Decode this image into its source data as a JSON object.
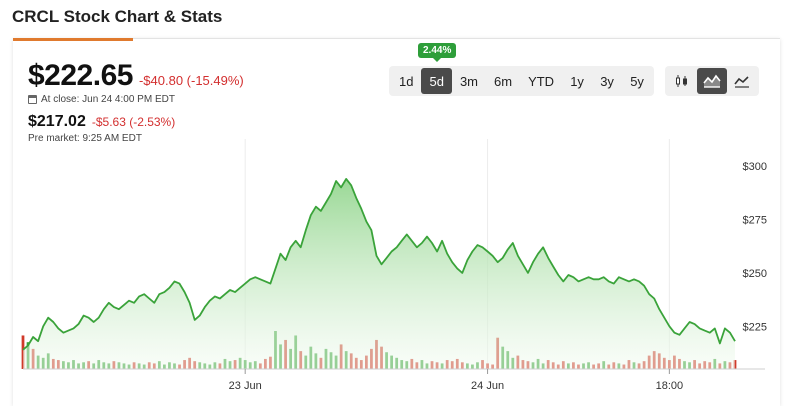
{
  "page": {
    "title": "CRCL Stock Chart & Stats"
  },
  "quote": {
    "price": "$222.65",
    "change": "-$40.80 (-15.49%)",
    "close_label": "At close: Jun 24 4:00 PM EDT",
    "pre_price": "$217.02",
    "pre_change": "-$5.63 (-2.53%)",
    "pre_label": "Pre market: 9:25 AM EDT"
  },
  "ranges": {
    "items": [
      "1d",
      "5d",
      "3m",
      "6m",
      "YTD",
      "1y",
      "3y",
      "5y"
    ],
    "selected": "5d",
    "badge": "2.44%"
  },
  "chart_types": {
    "items": [
      {
        "name": "candlestick-icon",
        "active": false
      },
      {
        "name": "mountain-icon",
        "active": true
      },
      {
        "name": "line-chart-icon",
        "active": false
      }
    ]
  },
  "colors": {
    "accent": "#e07a2e",
    "line": "#3aa33a",
    "area_top": "#8fd48a",
    "area_bottom": "#f3fbf2",
    "up": "#3aa33a",
    "down": "#d03a2a",
    "negative_text": "#d32f2f",
    "badge": "#2e9e3a"
  },
  "chart_data": {
    "type": "area",
    "title": "",
    "xlabel": "",
    "ylabel": "",
    "ylim": [
      205,
      308
    ],
    "y_ticks": [
      300,
      275,
      250,
      225
    ],
    "y_tick_labels": [
      "$300",
      "$275",
      "$250",
      "$225"
    ],
    "x_tick_labels": [
      {
        "label": "23 Jun",
        "index": 44
      },
      {
        "label": "24 Jun",
        "index": 92
      },
      {
        "label": "18:00",
        "index": 128
      }
    ],
    "price": [
      214,
      216,
      220,
      218,
      225,
      229,
      227,
      224,
      222,
      223,
      224,
      226,
      230,
      229,
      227,
      229,
      233,
      236,
      234,
      233,
      235,
      237,
      236,
      239,
      240,
      238,
      236,
      240,
      241,
      243,
      246,
      245,
      241,
      236,
      228,
      230,
      234,
      237,
      239,
      238,
      240,
      242,
      241,
      243,
      245,
      247,
      248,
      247,
      246,
      245,
      252,
      259,
      256,
      262,
      265,
      262,
      270,
      277,
      281,
      279,
      283,
      287,
      293,
      290,
      294,
      291,
      285,
      280,
      274,
      270,
      258,
      254,
      257,
      260,
      262,
      265,
      268,
      265,
      262,
      264,
      267,
      264,
      260,
      265,
      259,
      255,
      252,
      250,
      256,
      260,
      263,
      262,
      260,
      258,
      255,
      257,
      261,
      264,
      258,
      254,
      250,
      255,
      259,
      262,
      257,
      253,
      249,
      246,
      249,
      248,
      246,
      247,
      248,
      247,
      247,
      248,
      246,
      245,
      248,
      247,
      246,
      247,
      246,
      244,
      240,
      238,
      233,
      229,
      225,
      222,
      221,
      224,
      227,
      226,
      224,
      223,
      222,
      224,
      217,
      224,
      222,
      218
    ],
    "volume": [
      30,
      24,
      18,
      12,
      10,
      14,
      9,
      8,
      7,
      6,
      8,
      5,
      6,
      7,
      5,
      8,
      6,
      5,
      7,
      6,
      5,
      4,
      6,
      5,
      4,
      6,
      5,
      7,
      4,
      6,
      5,
      4,
      8,
      10,
      7,
      6,
      5,
      4,
      6,
      5,
      9,
      7,
      8,
      10,
      8,
      6,
      7,
      5,
      9,
      11,
      34,
      22,
      26,
      18,
      30,
      16,
      12,
      20,
      14,
      10,
      18,
      15,
      12,
      22,
      16,
      14,
      10,
      8,
      12,
      18,
      26,
      20,
      15,
      12,
      10,
      8,
      7,
      9,
      6,
      8,
      5,
      7,
      6,
      5,
      8,
      7,
      9,
      6,
      5,
      4,
      6,
      8,
      5,
      4,
      28,
      20,
      16,
      10,
      12,
      8,
      7,
      6,
      9,
      5,
      8,
      6,
      4,
      7,
      5,
      6,
      4,
      5,
      6,
      4,
      5,
      7,
      4,
      6,
      5,
      4,
      8,
      6,
      5,
      7,
      12,
      16,
      14,
      10,
      8,
      12,
      9,
      7,
      6,
      8,
      5,
      7,
      6,
      9,
      5,
      7,
      6,
      8
    ],
    "volume_up": [
      0,
      1,
      0,
      1,
      1,
      1,
      0,
      0,
      1,
      1,
      1,
      1,
      1,
      0,
      1,
      1,
      1,
      1,
      0,
      1,
      1,
      1,
      0,
      1,
      1,
      0,
      0,
      1,
      1,
      1,
      1,
      0,
      0,
      0,
      0,
      1,
      1,
      1,
      1,
      0,
      1,
      1,
      0,
      1,
      1,
      1,
      1,
      0,
      0,
      0,
      1,
      1,
      0,
      1,
      1,
      0,
      1,
      1,
      1,
      0,
      1,
      1,
      1,
      0,
      1,
      0,
      0,
      0,
      0,
      0,
      0,
      0,
      1,
      1,
      1,
      1,
      1,
      0,
      0,
      1,
      1,
      0,
      0,
      1,
      0,
      0,
      0,
      0,
      1,
      1,
      1,
      0,
      0,
      0,
      0,
      1,
      1,
      1,
      0,
      0,
      0,
      1,
      1,
      1,
      0,
      0,
      0,
      0,
      1,
      0,
      0,
      1,
      1,
      0,
      0,
      1,
      0,
      0,
      1,
      0,
      0,
      1,
      0,
      0,
      0,
      0,
      0,
      0,
      0,
      0,
      0,
      1,
      1,
      0,
      0,
      0,
      0,
      1,
      0,
      1,
      0,
      0
    ]
  }
}
